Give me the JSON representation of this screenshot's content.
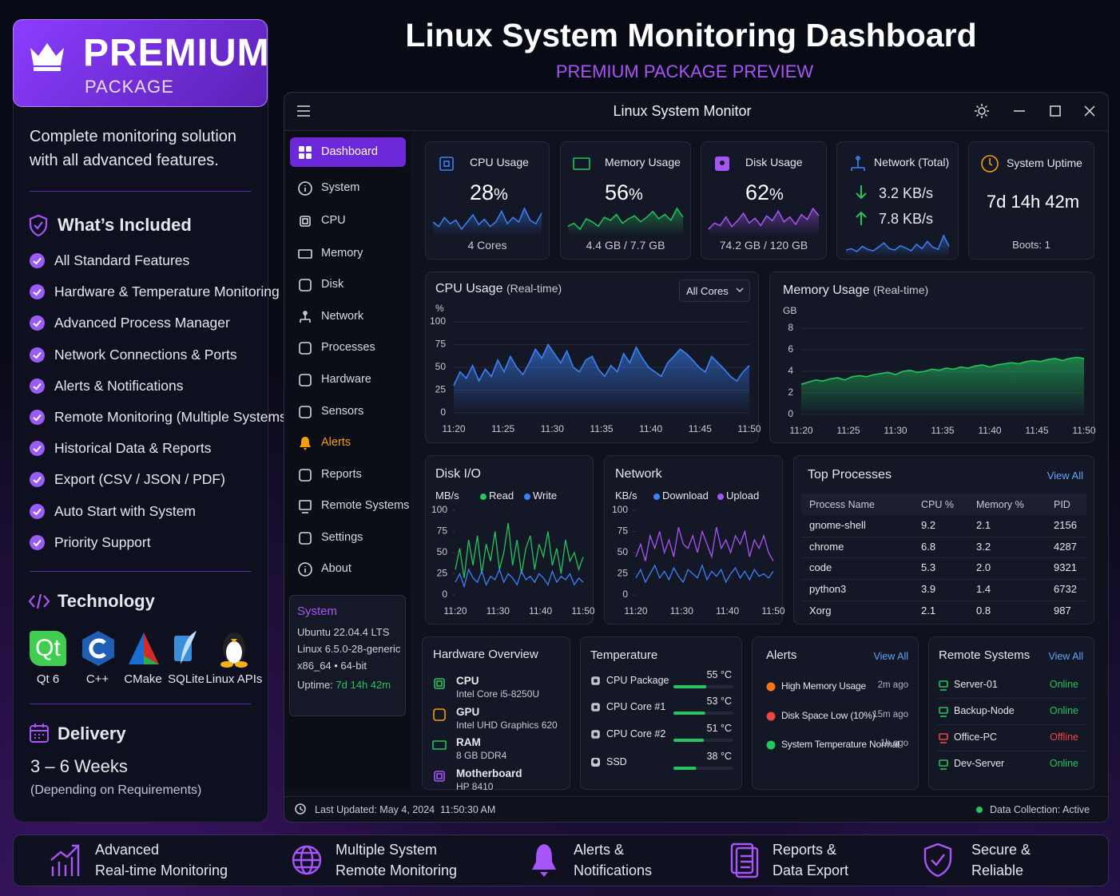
{
  "premium": {
    "title": "PREMIUM",
    "subtitle": "PACKAGE",
    "description": "Complete monitoring solution with all advanced features.",
    "included_title": "What’s Included",
    "features": [
      "All Standard Features",
      "Hardware & Temperature Monitoring",
      "Advanced Process Manager",
      "Network Connections & Ports",
      "Alerts & Notifications",
      "Remote Monitoring (Multiple Systems)",
      "Historical Data & Reports",
      "Export (CSV / JSON / PDF)",
      "Auto Start with System",
      "Priority Support"
    ],
    "technology_title": "Technology",
    "qt_logo": "Qt",
    "technologies": [
      "Qt 6",
      "C++",
      "CMake",
      "SQLite",
      "Linux APIs"
    ],
    "delivery_title": "Delivery",
    "delivery_time": "3 – 6 Weeks",
    "delivery_note": "(Depending on Requirements)"
  },
  "header": {
    "title": "Linux System Monitoring Dashboard",
    "subtitle": "PREMIUM PACKAGE PREVIEW"
  },
  "window": {
    "title": "Linux System Monitor"
  },
  "sidebar": {
    "items": [
      "Dashboard",
      "System",
      "CPU",
      "Memory",
      "Disk",
      "Network",
      "Processes",
      "Hardware",
      "Sensors",
      "Alerts",
      "Reports",
      "Remote Systems",
      "Settings",
      "About"
    ]
  },
  "system_info": {
    "title": "System",
    "lines": [
      "Ubuntu 22.04.4 LTS",
      "Linux 6.5.0-28-generic",
      "x86_64 • 64-bit"
    ],
    "uptime_label": "Uptime:",
    "uptime_value": "7d 14h 42m"
  },
  "stats": {
    "cpu": {
      "label": "CPU Usage",
      "value": 28,
      "unit": "%",
      "detail": "4 Cores",
      "color": "#3b82f6",
      "spark": [
        30,
        25,
        35,
        28,
        32,
        22,
        30,
        38,
        27,
        33,
        25,
        30,
        42,
        28,
        35,
        30,
        45,
        32,
        28,
        40
      ]
    },
    "memory": {
      "label": "Memory Usage",
      "value": 56,
      "unit": "%",
      "detail": "4.4 GB / 7.7 GB",
      "color": "#22c55e",
      "spark": [
        50,
        52,
        48,
        55,
        53,
        50,
        56,
        54,
        58,
        52,
        55,
        57,
        53,
        56,
        60,
        55,
        58,
        54,
        62,
        56
      ]
    },
    "disk": {
      "label": "Disk Usage",
      "value": 62,
      "unit": "%",
      "detail": "74.2 GB / 120 GB",
      "color": "#a855f7",
      "spark": [
        55,
        60,
        58,
        65,
        57,
        62,
        68,
        60,
        64,
        58,
        66,
        62,
        70,
        61,
        65,
        59,
        67,
        63,
        72,
        66
      ]
    },
    "network": {
      "label": "Network (Total)",
      "download": "3.2 KB/s",
      "upload": "7.8 KB/s",
      "color": "#3b82f6",
      "spark": [
        10,
        12,
        8,
        15,
        11,
        9,
        14,
        20,
        12,
        10,
        16,
        13,
        9,
        18,
        12,
        22,
        14,
        11,
        30,
        15
      ]
    },
    "uptime": {
      "label": "System Uptime",
      "value_text": "7d 14h 42m",
      "detail": "Boots: 1"
    }
  },
  "cpu_chart": {
    "type": "line",
    "title": "CPU Usage",
    "title_suffix": "(Real-time)",
    "dropdown": "All Cores",
    "y_label": "%",
    "ylim": [
      0,
      100
    ],
    "yticks": [
      0,
      25,
      50,
      75,
      100
    ],
    "grid": true,
    "xticks": [
      "11:20",
      "11:25",
      "11:30",
      "11:35",
      "11:40",
      "11:45",
      "11:50"
    ],
    "series": [
      {
        "color": "#3b82f6",
        "values": [
          30,
          45,
          38,
          52,
          35,
          48,
          40,
          58,
          45,
          62,
          50,
          42,
          55,
          70,
          60,
          75,
          65,
          55,
          68,
          50,
          45,
          58,
          62,
          48,
          40,
          52,
          45,
          65,
          55,
          72,
          60,
          50,
          45,
          40,
          55,
          62,
          70,
          65,
          58,
          50,
          45,
          62,
          55,
          48,
          40,
          35,
          45,
          52
        ]
      }
    ]
  },
  "memory_chart": {
    "type": "line",
    "title": "Memory Usage",
    "title_suffix": "(Real-time)",
    "y_label": "GB",
    "ylim": [
      0,
      8
    ],
    "yticks": [
      0,
      2,
      4,
      6,
      8
    ],
    "grid": true,
    "xticks": [
      "11:20",
      "11:25",
      "11:30",
      "11:35",
      "11:40",
      "11:45",
      "11:50"
    ],
    "series": [
      {
        "color": "#22c55e",
        "values": [
          2.8,
          3.0,
          3.2,
          3.1,
          3.3,
          3.4,
          3.2,
          3.5,
          3.6,
          3.5,
          3.7,
          3.8,
          3.9,
          3.7,
          4.0,
          4.1,
          3.9,
          4.0,
          4.2,
          4.1,
          4.3,
          4.2,
          4.4,
          4.3,
          4.5,
          4.6,
          4.4,
          4.6,
          4.7,
          4.8,
          4.7,
          4.9,
          5.0,
          4.9,
          5.1,
          5.2,
          5.0,
          5.2,
          5.3,
          5.2
        ]
      }
    ]
  },
  "disk_chart": {
    "type": "line",
    "title": "Disk I/O",
    "y_label": "MB/s",
    "ylim": [
      0,
      100
    ],
    "yticks": [
      0,
      25,
      50,
      75,
      100
    ],
    "grid": false,
    "xticks": [
      "11:20",
      "11:30",
      "11:40",
      "11:50"
    ],
    "series": [
      {
        "name": "Read",
        "color": "#22c55e",
        "values": [
          30,
          55,
          20,
          65,
          35,
          70,
          25,
          60,
          40,
          75,
          30,
          50,
          85,
          35,
          65,
          25,
          55,
          70,
          30,
          60,
          45,
          75,
          35,
          55,
          25,
          65,
          40,
          50,
          30,
          45
        ]
      },
      {
        "name": "Write",
        "color": "#3b82f6",
        "values": [
          15,
          25,
          10,
          30,
          20,
          15,
          28,
          12,
          22,
          18,
          30,
          15,
          25,
          20,
          12,
          28,
          18,
          22,
          15,
          25,
          20,
          12,
          28,
          15,
          22,
          18,
          25,
          12,
          20,
          15
        ]
      }
    ]
  },
  "network_chart": {
    "type": "line",
    "title": "Network",
    "y_label": "KB/s",
    "ylim": [
      0,
      100
    ],
    "yticks": [
      0,
      25,
      50,
      75,
      100
    ],
    "grid": false,
    "xticks": [
      "11:20",
      "11:30",
      "11:40",
      "11:50"
    ],
    "series": [
      {
        "name": "Download",
        "color": "#3b82f6",
        "values": [
          20,
          30,
          15,
          25,
          35,
          20,
          28,
          18,
          32,
          22,
          15,
          30,
          25,
          20,
          35,
          18,
          28,
          22,
          30,
          15,
          25,
          32,
          20,
          28,
          18,
          30,
          22,
          25,
          20,
          28
        ]
      },
      {
        "name": "Upload",
        "color": "#a855f7",
        "values": [
          45,
          60,
          40,
          70,
          55,
          75,
          50,
          65,
          45,
          80,
          60,
          55,
          70,
          50,
          75,
          60,
          45,
          80,
          55,
          65,
          50,
          70,
          60,
          75,
          45,
          65,
          55,
          70,
          50,
          40
        ]
      }
    ]
  },
  "top_processes": {
    "title": "Top Processes",
    "view_all": "View All",
    "columns": [
      "Process Name",
      "CPU %",
      "Memory %",
      "PID"
    ],
    "rows": [
      [
        "gnome-shell",
        "9.2",
        "2.1",
        "2156"
      ],
      [
        "chrome",
        "6.8",
        "3.2",
        "4287"
      ],
      [
        "code",
        "5.3",
        "2.0",
        "9321"
      ],
      [
        "python3",
        "3.9",
        "1.4",
        "6732"
      ],
      [
        "Xorg",
        "2.1",
        "0.8",
        "987"
      ]
    ]
  },
  "hardware": {
    "title": "Hardware Overview",
    "items": [
      {
        "name": "CPU",
        "detail": "Intel Core i5-8250U"
      },
      {
        "name": "GPU",
        "detail": "Intel UHD Graphics 620"
      },
      {
        "name": "RAM",
        "detail": "8 GB DDR4"
      },
      {
        "name": "Motherboard",
        "detail": "HP 8410"
      }
    ]
  },
  "temperature": {
    "title": "Temperature",
    "xlim": [
      0,
      100
    ],
    "color": "#22c55e",
    "items": [
      {
        "name": "CPU Package",
        "value": 55,
        "label": "55 °C"
      },
      {
        "name": "CPU Core #1",
        "value": 53,
        "label": "53 °C"
      },
      {
        "name": "CPU Core #2",
        "value": 51,
        "label": "51 °C"
      },
      {
        "name": "SSD",
        "value": 38,
        "label": "38 °C"
      }
    ]
  },
  "alerts": {
    "title": "Alerts",
    "view_all": "View All",
    "items": [
      {
        "text": "High Memory Usage",
        "time": "2m ago",
        "color": "#f97316"
      },
      {
        "text": "Disk Space Low (10%)",
        "time": "15m ago",
        "color": "#ef4444"
      },
      {
        "text": "System Temperature Normal",
        "time": "1h ago",
        "color": "#22c55e"
      }
    ]
  },
  "remote_systems": {
    "title": "Remote Systems",
    "view_all": "View All",
    "items": [
      {
        "name": "Server-01",
        "status": "Online",
        "color": "#22c55e"
      },
      {
        "name": "Backup-Node",
        "status": "Online",
        "color": "#22c55e"
      },
      {
        "name": "Office-PC",
        "status": "Offline",
        "color": "#ef4444"
      },
      {
        "name": "Dev-Server",
        "status": "Online",
        "color": "#22c55e"
      }
    ]
  },
  "status": {
    "last_updated": "Last Updated: May 4, 2024  11:50:30 AM",
    "collection": "Data Collection: Active"
  },
  "footer": {
    "items": [
      [
        "Advanced",
        "Real-time Monitoring"
      ],
      [
        "Multiple System",
        "Remote Monitoring"
      ],
      [
        "Alerts &",
        "Notifications"
      ],
      [
        "Reports &",
        "Data Export"
      ],
      [
        "Secure &",
        "Reliable"
      ]
    ]
  }
}
